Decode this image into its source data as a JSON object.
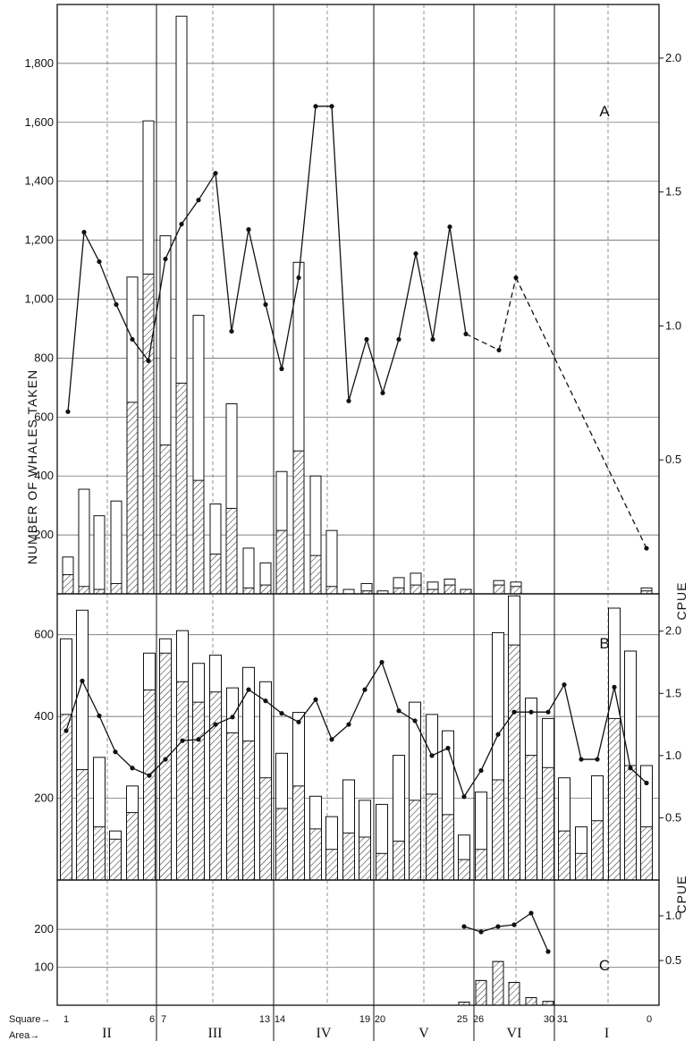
{
  "chart_data": {
    "type": "bar",
    "ylabel": "NUMBER OF WHALES TAKEN",
    "y2label": "CPUE",
    "x_axis": {
      "square_label": "Square→",
      "area_label": "Area→",
      "square_ticks": [
        "1",
        "6",
        "7",
        "13",
        "14",
        "19",
        "20",
        "25",
        "26",
        "30",
        "31",
        "0"
      ],
      "areas": [
        "II",
        "III",
        "IV",
        "V",
        "VI",
        "I"
      ]
    },
    "panels": [
      {
        "label": "A",
        "ylim": [
          0,
          2000
        ],
        "yticks": [
          "200",
          "400",
          "600",
          "800",
          "1,000",
          "1,200",
          "1,400",
          "1,600",
          "1,800"
        ],
        "y2lim": [
          0,
          2.2
        ],
        "y2ticks": [
          "0.5",
          "1.0",
          "1.5",
          "2.0"
        ],
        "series": [
          {
            "kind": "total",
            "values": [
              125,
              355,
              265,
              315,
              1075,
              1605,
              1215,
              1960,
              945,
              305,
              645,
              155,
              105,
              415,
              1125,
              400,
              215,
              15,
              35,
              10,
              55,
              70,
              40,
              50,
              null,
              45,
              40,
              null,
              null,
              null,
              null,
              20
            ]
          },
          {
            "kind": "hatched",
            "values": [
              65,
              25,
              15,
              35,
              650,
              1085,
              505,
              715,
              385,
              135,
              290,
              20,
              30,
              215,
              485,
              130,
              25,
              0,
              10,
              0,
              20,
              30,
              15,
              30,
              15,
              30,
              25,
              null,
              null,
              null,
              null,
              10
            ]
          },
          {
            "kind": "cpue",
            "values": [
              0.68,
              1.35,
              1.24,
              1.08,
              0.95,
              0.87,
              1.25,
              1.38,
              1.47,
              1.57,
              0.98,
              1.36,
              1.08,
              0.84,
              1.18,
              1.82,
              1.82,
              0.72,
              0.95,
              0.75,
              0.95,
              1.27,
              0.95,
              1.37,
              0.97,
              0.91,
              1.18,
              null,
              null,
              null,
              null,
              0.17
            ]
          }
        ]
      },
      {
        "label": "B",
        "ylim": [
          0,
          700
        ],
        "yticks": [
          "200",
          "400",
          "600"
        ],
        "y2lim": [
          0,
          2.3
        ],
        "y2ticks": [
          "0.5",
          "1.0",
          "1.5",
          "2.0"
        ],
        "series": [
          {
            "kind": "total",
            "values": [
              590,
              660,
              300,
              120,
              230,
              555,
              590,
              610,
              530,
              550,
              470,
              520,
              485,
              310,
              410,
              205,
              155,
              245,
              195,
              185,
              305,
              435,
              405,
              365,
              110,
              215,
              605,
              695,
              445,
              395,
              250,
              130,
              255,
              665,
              560,
              280
            ]
          },
          {
            "kind": "hatched",
            "values": [
              405,
              270,
              130,
              100,
              165,
              465,
              555,
              485,
              435,
              460,
              360,
              340,
              250,
              175,
              230,
              125,
              75,
              115,
              105,
              65,
              95,
              195,
              210,
              160,
              50,
              75,
              245,
              575,
              305,
              275,
              120,
              65,
              145,
              395,
              280,
              130
            ]
          },
          {
            "kind": "cpue",
            "values": [
              1.2,
              1.6,
              1.32,
              1.03,
              0.9,
              0.84,
              0.97,
              1.12,
              1.13,
              1.25,
              1.31,
              1.53,
              1.44,
              1.34,
              1.27,
              1.45,
              1.13,
              1.25,
              1.53,
              1.75,
              1.36,
              1.28,
              1.0,
              1.06,
              0.67,
              0.88,
              1.17,
              1.35,
              1.35,
              1.35,
              1.57,
              0.97,
              0.97,
              1.55,
              0.9,
              0.78
            ]
          }
        ]
      },
      {
        "label": "C",
        "ylim": [
          0,
          330
        ],
        "yticks": [
          "100",
          "200"
        ],
        "y2lim": [
          0,
          1.4
        ],
        "y2ticks": [
          "0.5",
          "1.0"
        ],
        "series": [
          {
            "kind": "total",
            "values": [
              8,
              65,
              115,
              60,
              20,
              10
            ]
          },
          {
            "kind": "hatched",
            "values": [
              8,
              65,
              115,
              60,
              20,
              10
            ]
          },
          {
            "kind": "cpue",
            "values": [
              0.88,
              0.82,
              0.88,
              0.9,
              1.03,
              0.6
            ]
          }
        ]
      }
    ]
  }
}
